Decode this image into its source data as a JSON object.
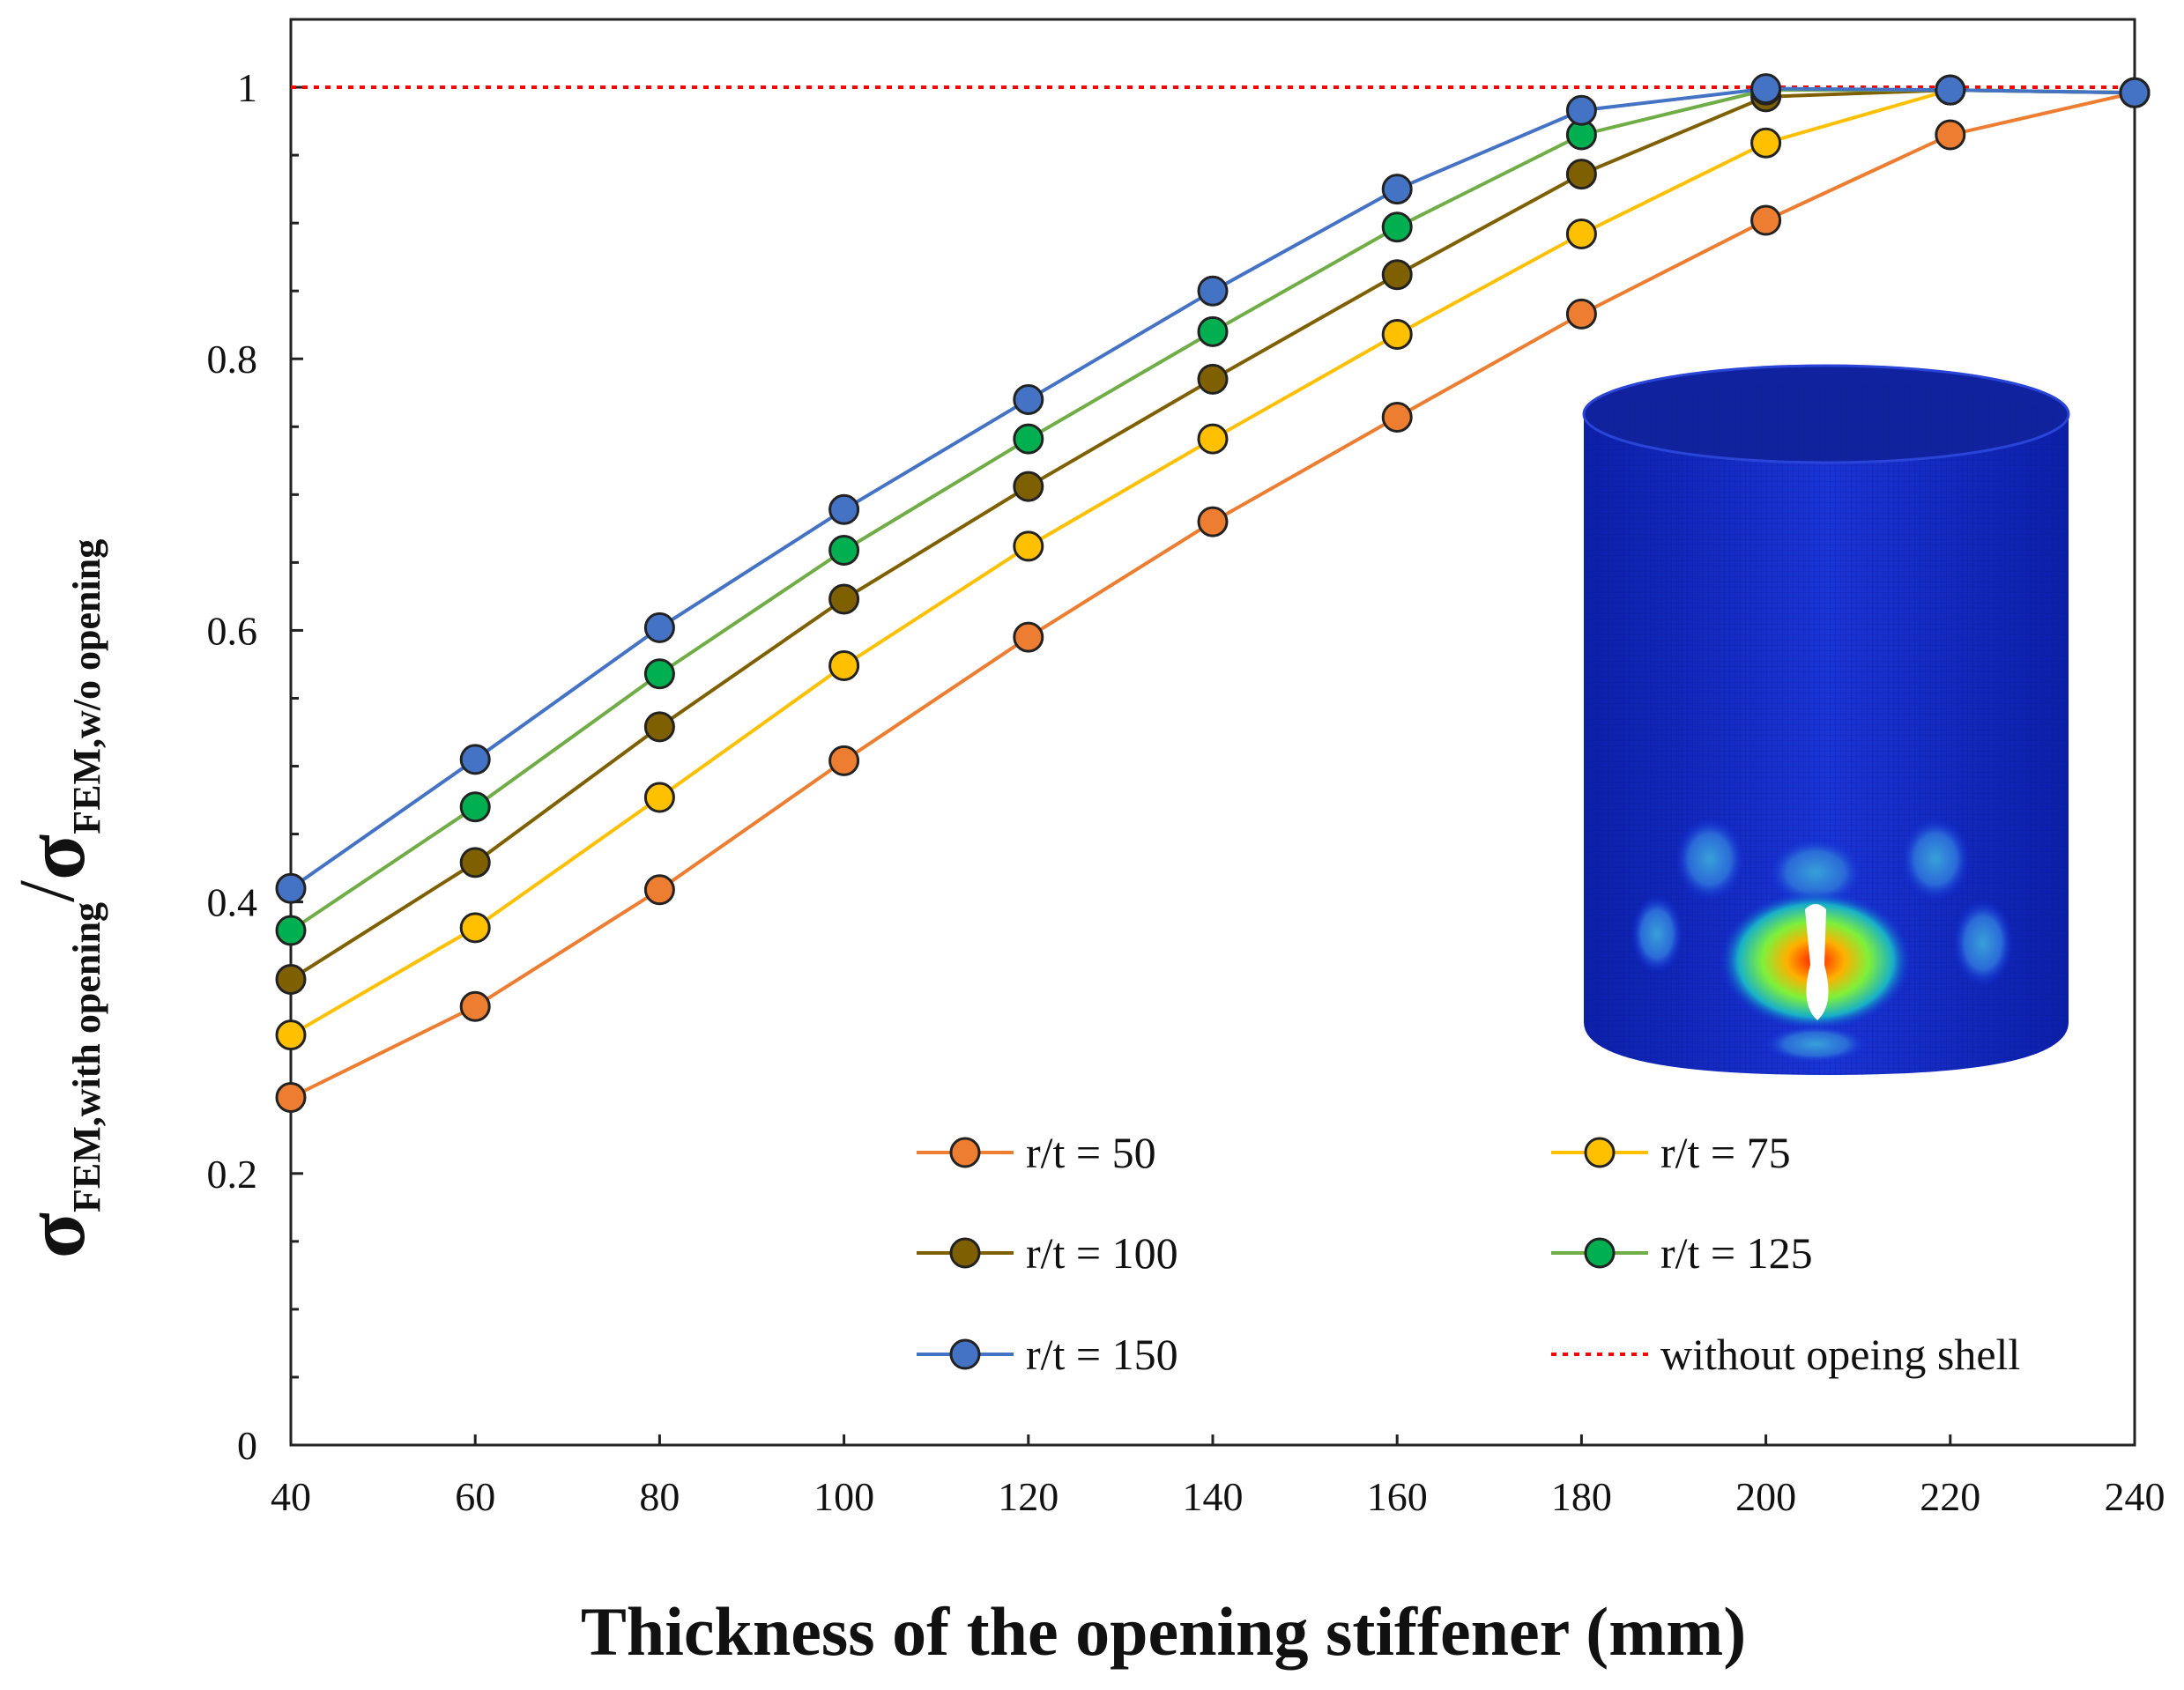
{
  "chart_data": {
    "type": "line",
    "title": "",
    "xlabel": "Thickness of the opening stiffener (mm)",
    "ylabel": {
      "numerator_symbol": "σ",
      "numerator_subscript": "FEM,with opening",
      "separator": "/",
      "denominator_symbol": "σ",
      "denominator_subscript": "FEM,w/o opening"
    },
    "x": [
      40,
      60,
      80,
      100,
      120,
      140,
      160,
      180,
      200,
      220,
      240
    ],
    "xlim": [
      40,
      240
    ],
    "ylim": [
      0,
      1.05
    ],
    "xticks": [
      "40",
      "60",
      "80",
      "100",
      "120",
      "140",
      "160",
      "180",
      "200",
      "220",
      "240"
    ],
    "yticks": [
      {
        "value": 0,
        "label": "0"
      },
      {
        "value": 0.2,
        "label": "0.2"
      },
      {
        "value": 0.4,
        "label": "0.4"
      },
      {
        "value": 0.6,
        "label": "0.6"
      },
      {
        "value": 0.8,
        "label": "0.8"
      },
      {
        "value": 1,
        "label": "1"
      }
    ],
    "grid": false,
    "series": [
      {
        "name": "r/t = 50",
        "line_color": "#ED7D31",
        "marker_color": "#ED7D31",
        "values": [
          0.256,
          0.323,
          0.409,
          0.504,
          0.595,
          0.68,
          0.757,
          0.833,
          0.902,
          0.965,
          0.996
        ]
      },
      {
        "name": "r/t = 75",
        "line_color": "#FFC000",
        "marker_color": "#FFC000",
        "values": [
          0.302,
          0.381,
          0.477,
          0.574,
          0.662,
          0.741,
          0.818,
          0.892,
          0.959,
          0.998,
          0.996
        ]
      },
      {
        "name": "r/t = 100",
        "line_color": "#7F6000",
        "marker_color": "#7F6000",
        "values": [
          0.343,
          0.429,
          0.529,
          0.623,
          0.706,
          0.785,
          0.862,
          0.936,
          0.993,
          0.998,
          0.996
        ]
      },
      {
        "name": "r/t = 125",
        "line_color": "#70AD47",
        "marker_color": "#00B050",
        "values": [
          0.379,
          0.47,
          0.568,
          0.659,
          0.741,
          0.82,
          0.897,
          0.965,
          0.998,
          0.998,
          0.996
        ]
      },
      {
        "name": "r/t = 150",
        "line_color": "#4472C4",
        "marker_color": "#4472C4",
        "values": [
          0.41,
          0.505,
          0.602,
          0.689,
          0.77,
          0.85,
          0.925,
          0.983,
          0.999,
          0.998,
          0.996
        ]
      }
    ],
    "reference_line": {
      "name": "without opeing shell",
      "value": 1.0,
      "color": "#FF0000"
    },
    "legend_position": "bottom-right",
    "inset": {
      "description_symbol": "cylindrical-shell-fem-contour"
    }
  }
}
